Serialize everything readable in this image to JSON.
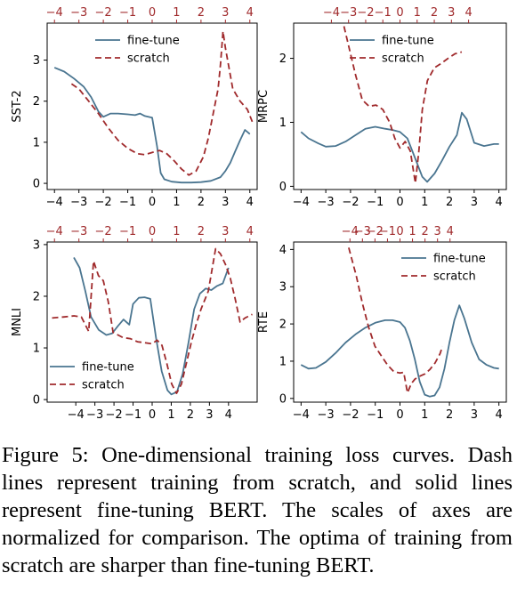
{
  "figure": {
    "caption": "Figure 5: One-dimensional training loss curves. Dash lines represent training from scratch, and solid lines represent fine-tuning BERT. The scales of axes are normalized for comparison. The optima of training from scratch are sharper than fine-tuning BERT."
  },
  "colors": {
    "fine_tune": "#4a7590",
    "scratch": "#a02a2c",
    "axis": "#000000"
  },
  "chart_data": [
    {
      "type": "line",
      "title": "",
      "ylabel": "SST-2",
      "xlabel": "",
      "grid": false,
      "legend_position": "upper-center",
      "xlim_bottom": [
        -4.3,
        4.3
      ],
      "xticks_bottom": [
        -4,
        -3,
        -2,
        -1,
        0,
        1,
        2,
        3,
        4
      ],
      "xticklabels_bottom": [
        "−4",
        "−3",
        "−2",
        "−1",
        "0",
        "1",
        "2",
        "3",
        "4"
      ],
      "xlim_top": [
        -4.3,
        4.3
      ],
      "xticks_top": [
        -4,
        -3,
        -2,
        -1,
        0,
        1,
        2,
        3,
        4
      ],
      "xticklabels_top": [
        "−4",
        "−3",
        "−2",
        "−1",
        "0",
        "1",
        "2",
        "3",
        "4"
      ],
      "ylim": [
        -0.15,
        3.9
      ],
      "yticks": [
        0,
        1,
        2,
        3
      ],
      "yticklabels": [
        "0",
        "1",
        "2",
        "3"
      ],
      "series": [
        {
          "name": "fine-tune",
          "style": "solid",
          "axis": "bottom",
          "x": [
            -4,
            -3.6,
            -3.2,
            -2.8,
            -2.5,
            -2.2,
            -2.0,
            -1.7,
            -1.4,
            -1.0,
            -0.7,
            -0.5,
            -0.3,
            0.0,
            0.2,
            0.35,
            0.5,
            0.8,
            1.2,
            1.6,
            2.0,
            2.4,
            2.8,
            3.0,
            3.2,
            3.4,
            3.6,
            3.8,
            4.0
          ],
          "y": [
            2.82,
            2.72,
            2.55,
            2.35,
            2.1,
            1.75,
            1.62,
            1.7,
            1.7,
            1.68,
            1.66,
            1.7,
            1.64,
            1.6,
            0.9,
            0.25,
            0.1,
            0.04,
            0.02,
            0.02,
            0.03,
            0.06,
            0.15,
            0.3,
            0.5,
            0.78,
            1.05,
            1.3,
            1.2
          ]
        },
        {
          "name": "scratch",
          "style": "dashed",
          "axis": "top",
          "x": [
            -3.3,
            -3.0,
            -2.6,
            -2.2,
            -1.8,
            -1.4,
            -1.0,
            -0.6,
            -0.3,
            0.0,
            0.3,
            0.6,
            0.9,
            1.2,
            1.5,
            1.8,
            2.1,
            2.3,
            2.5,
            2.7,
            2.8,
            2.9,
            3.0,
            3.3,
            3.6,
            3.9,
            4.1
          ],
          "y": [
            2.42,
            2.3,
            2.0,
            1.7,
            1.35,
            1.05,
            0.85,
            0.72,
            0.7,
            0.75,
            0.8,
            0.72,
            0.55,
            0.35,
            0.2,
            0.3,
            0.65,
            1.1,
            1.7,
            2.3,
            2.9,
            3.7,
            3.3,
            2.3,
            2.0,
            1.8,
            1.5
          ]
        }
      ]
    },
    {
      "type": "line",
      "title": "",
      "ylabel": "MRPC",
      "xlabel": "",
      "grid": false,
      "legend_position": "upper-center",
      "xlim_bottom": [
        -4.3,
        4.3
      ],
      "xticks_bottom": [
        -4,
        -3,
        -2,
        -1,
        0,
        1,
        2,
        3,
        4
      ],
      "xticklabels_bottom": [
        "−4",
        "−3",
        "−2",
        "−1",
        "0",
        "1",
        "2",
        "3",
        "4"
      ],
      "xlim_top": [
        -6.2,
        6.2
      ],
      "xticks_top": [
        -4,
        -3,
        -2,
        -1,
        0,
        1,
        2,
        3,
        4
      ],
      "xticklabels_top": [
        "−4",
        "−3",
        "−2",
        "−1",
        "0",
        "1",
        "2",
        "3",
        "4"
      ],
      "ylim": [
        -0.05,
        2.55
      ],
      "yticks": [
        0,
        1,
        2
      ],
      "yticklabels": [
        "0",
        "1",
        "2"
      ],
      "series": [
        {
          "name": "fine-tune",
          "style": "solid",
          "axis": "bottom",
          "x": [
            -4,
            -3.7,
            -3.3,
            -3.0,
            -2.6,
            -2.2,
            -1.8,
            -1.4,
            -1.0,
            -0.6,
            -0.3,
            0.0,
            0.3,
            0.6,
            0.9,
            1.1,
            1.4,
            1.7,
            2.0,
            2.3,
            2.5,
            2.7,
            3.0,
            3.4,
            3.8,
            4.0
          ],
          "y": [
            0.85,
            0.75,
            0.67,
            0.62,
            0.63,
            0.7,
            0.8,
            0.9,
            0.93,
            0.9,
            0.88,
            0.85,
            0.75,
            0.45,
            0.15,
            0.07,
            0.2,
            0.4,
            0.62,
            0.8,
            1.15,
            1.05,
            0.68,
            0.63,
            0.66,
            0.66
          ]
        },
        {
          "name": "scratch",
          "style": "dashed",
          "axis": "top",
          "x": [
            -3.4,
            -3.0,
            -2.6,
            -2.2,
            -1.8,
            -1.4,
            -1.0,
            -0.6,
            -0.3,
            0.0,
            0.3,
            0.6,
            0.9,
            1.1,
            1.3,
            1.6,
            2.0,
            2.4,
            2.8,
            3.2,
            3.6
          ],
          "y": [
            2.65,
            2.2,
            1.75,
            1.35,
            1.25,
            1.27,
            1.2,
            1.0,
            0.75,
            0.6,
            0.7,
            0.55,
            0.05,
            0.55,
            1.2,
            1.65,
            1.85,
            1.92,
            2.0,
            2.07,
            2.1
          ]
        }
      ]
    },
    {
      "type": "line",
      "title": "",
      "ylabel": "MNLI",
      "xlabel": "",
      "grid": false,
      "legend_position": "lower-left",
      "xlim_bottom": [
        -5.5,
        5.5
      ],
      "xticks_bottom": [
        -4,
        -3,
        -2,
        -1,
        0,
        1,
        2,
        3,
        4
      ],
      "xticklabels_bottom": [
        "−4",
        "−3",
        "−2",
        "−1",
        "0",
        "1",
        "2",
        "3",
        "4"
      ],
      "xlim_top": [
        -4.3,
        4.3
      ],
      "xticks_top": [
        -4,
        -3,
        -2,
        -1,
        0,
        1,
        2,
        3,
        4
      ],
      "xticklabels_top": [
        "−4",
        "−3",
        "−2",
        "−1",
        "0",
        "1",
        "2",
        "3",
        "4"
      ],
      "ylim": [
        -0.05,
        3.05
      ],
      "yticks": [
        0,
        1,
        2,
        3
      ],
      "yticklabels": [
        "0",
        "1",
        "2",
        "3"
      ],
      "series": [
        {
          "name": "fine-tune",
          "style": "solid",
          "axis": "bottom",
          "x": [
            -4.1,
            -3.8,
            -3.5,
            -3.2,
            -2.8,
            -2.4,
            -2.1,
            -1.8,
            -1.5,
            -1.2,
            -1.0,
            -0.7,
            -0.4,
            -0.1,
            0.2,
            0.5,
            0.8,
            1.0,
            1.3,
            1.6,
            1.9,
            2.2,
            2.5,
            2.8,
            3.1,
            3.4,
            3.7,
            4.0
          ],
          "y": [
            2.75,
            2.55,
            2.1,
            1.6,
            1.35,
            1.25,
            1.28,
            1.42,
            1.55,
            1.45,
            1.85,
            1.97,
            1.98,
            1.95,
            1.2,
            0.55,
            0.18,
            0.1,
            0.15,
            0.5,
            1.1,
            1.75,
            2.05,
            2.15,
            2.12,
            2.2,
            2.25,
            2.55
          ]
        },
        {
          "name": "scratch",
          "style": "dashed",
          "axis": "top",
          "x": [
            -4.1,
            -3.6,
            -3.2,
            -2.9,
            -2.6,
            -2.4,
            -2.2,
            -2.0,
            -1.8,
            -1.6,
            -1.4,
            -1.2,
            -0.9,
            -0.6,
            -0.3,
            0.0,
            0.2,
            0.4,
            0.6,
            0.8,
            1.0,
            1.2,
            1.4,
            1.6,
            1.8,
            2.0,
            2.3,
            2.6,
            2.8,
            3.0,
            3.2,
            3.4,
            3.6,
            3.8,
            4.1
          ],
          "y": [
            1.58,
            1.6,
            1.62,
            1.6,
            1.32,
            2.68,
            2.4,
            2.3,
            1.9,
            1.3,
            1.25,
            1.2,
            1.18,
            1.12,
            1.1,
            1.08,
            1.15,
            1.05,
            0.7,
            0.3,
            0.12,
            0.3,
            0.7,
            1.1,
            1.45,
            1.75,
            2.1,
            2.92,
            2.82,
            2.62,
            2.35,
            1.95,
            1.5,
            1.58,
            1.65
          ]
        }
      ]
    },
    {
      "type": "line",
      "title": "",
      "ylabel": "RTE",
      "xlabel": "",
      "grid": false,
      "legend_position": "upper-right",
      "xlim_bottom": [
        -4.3,
        4.3
      ],
      "xticks_bottom": [
        -4,
        -3,
        -2,
        -1,
        0,
        1,
        2,
        3,
        4
      ],
      "xticklabels_bottom": [
        "−4",
        "−3",
        "−2",
        "−1",
        "0",
        "1",
        "2",
        "3",
        "4"
      ],
      "xlim_top": [
        -8.5,
        8.5
      ],
      "xticks_top": [
        -4,
        -3,
        -2,
        -1,
        0,
        1,
        2,
        3,
        4
      ],
      "xticklabels_top": [
        "−4",
        "−3",
        "−2",
        "−1",
        "0",
        "1",
        "2",
        "3",
        "4"
      ],
      "ylim": [
        -0.1,
        4.2
      ],
      "yticks": [
        0,
        1,
        2,
        3,
        4
      ],
      "yticklabels": [
        "0",
        "1",
        "2",
        "3",
        "4"
      ],
      "series": [
        {
          "name": "fine-tune",
          "style": "solid",
          "axis": "bottom",
          "x": [
            -4,
            -3.7,
            -3.4,
            -3.0,
            -2.6,
            -2.2,
            -1.8,
            -1.4,
            -1.0,
            -0.6,
            -0.3,
            0.0,
            0.2,
            0.4,
            0.6,
            0.8,
            1.0,
            1.2,
            1.4,
            1.6,
            1.8,
            2.0,
            2.2,
            2.4,
            2.6,
            2.9,
            3.2,
            3.5,
            3.8,
            4.0
          ],
          "y": [
            0.9,
            0.8,
            0.82,
            0.98,
            1.22,
            1.5,
            1.72,
            1.9,
            2.03,
            2.1,
            2.1,
            2.05,
            1.9,
            1.55,
            1.05,
            0.45,
            0.1,
            0.05,
            0.08,
            0.3,
            0.8,
            1.5,
            2.1,
            2.5,
            2.15,
            1.5,
            1.05,
            0.9,
            0.82,
            0.8
          ]
        },
        {
          "name": "scratch",
          "style": "dashed",
          "axis": "top",
          "x": [
            -4.1,
            -3.5,
            -3.0,
            -2.5,
            -2.0,
            -1.5,
            -1.0,
            -0.5,
            0.0,
            0.3,
            0.6,
            0.9,
            1.2,
            1.6,
            2.0,
            2.4,
            2.8,
            3.2,
            3.4
          ],
          "y": [
            4.05,
            3.3,
            2.55,
            1.9,
            1.4,
            1.15,
            0.9,
            0.72,
            0.68,
            0.7,
            0.15,
            0.4,
            0.52,
            0.6,
            0.66,
            0.78,
            0.95,
            1.2,
            1.4
          ]
        }
      ]
    }
  ]
}
